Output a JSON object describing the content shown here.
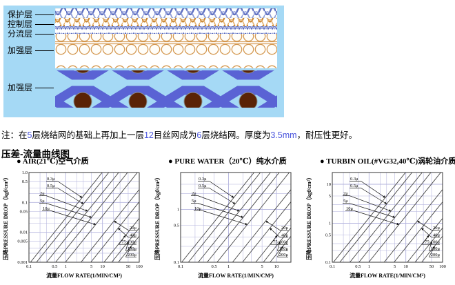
{
  "colors": {
    "diagram_background": "#a5d9f5",
    "braid_blue": "#5b6cc0",
    "braid_blue_light": "#8f9dd8",
    "braid_orange": "#c8852f",
    "braid_orange_light": "#e3b070",
    "circle_orange": "#d49850",
    "weave_ribbon_blue": "#5a63d4",
    "weft_wire_brown": "#5a2306",
    "note_highlight": "#4a55dd",
    "chart_grid": "#b4b4de",
    "chart_line": "#444444"
  },
  "diagram": {
    "labels": [
      {
        "text": "保护层"
      },
      {
        "text": "控制层"
      },
      {
        "text": "分流层"
      },
      {
        "text": "加强层"
      },
      {
        "text": "加强层"
      }
    ]
  },
  "note": {
    "part1": "注：在",
    "n1": "5",
    "part2": "层烧结网的基础上再加上一层",
    "n2": "12",
    "part3": "目丝网成为",
    "n3": "6",
    "part4": "层烧结网。厚度为",
    "n4": "3.5mm",
    "part5": "，耐压性更好。"
  },
  "section_title": "压差-流量曲线图",
  "chart_data": [
    {
      "type": "line",
      "title": "● AIR(21℃)空气介质",
      "xlabel": "流量FLOW RATE(1/MIN/CM²)",
      "ylabel": "压降PRESSURE DROP（kgf/cm²）",
      "xlim": [
        0.1,
        100
      ],
      "ylim": [
        0.001,
        1.0
      ],
      "xticks": {
        "values": [
          0.1,
          0.5,
          1,
          5,
          10,
          50,
          100
        ],
        "labels": [
          "0.1",
          "0.5",
          "1",
          "5",
          "10",
          "50",
          "100"
        ]
      },
      "yticks": {
        "values": [
          1.0,
          0.5,
          0.1,
          0.05,
          0.01,
          0.005,
          0.001
        ],
        "labels": [
          "1.0",
          "0.5",
          "0.1",
          "0.05",
          "0.01",
          "0.005",
          "0.001"
        ]
      },
      "series": [
        {
          "name": "0.3μ",
          "points": [
            [
              0.11,
              0.001
            ],
            [
              9.8,
              1.0
            ]
          ]
        },
        {
          "name": "0.5μ",
          "points": [
            [
              0.16,
              0.001
            ],
            [
              14.8,
              1.0
            ]
          ]
        },
        {
          "name": "2μ",
          "points": [
            [
              0.3,
              0.001
            ],
            [
              27.5,
              1.0
            ]
          ]
        },
        {
          "name": "5μ",
          "points": [
            [
              0.53,
              0.001
            ],
            [
              48,
              1.0
            ]
          ]
        },
        {
          "name": "10μ",
          "points": [
            [
              0.98,
              0.001
            ],
            [
              89,
              1.0
            ]
          ]
        },
        {
          "name": "20μ",
          "points": [
            [
              2.6,
              0.001
            ],
            [
              234,
              1.0
            ]
          ]
        },
        {
          "name": "40μ",
          "points": [
            [
              4.8,
              0.001
            ],
            [
              437,
              1.0
            ]
          ]
        },
        {
          "name": "75-100μ",
          "points": [
            [
              11,
              0.001
            ],
            [
              1000,
              1.0
            ]
          ]
        },
        {
          "name": "150μ",
          "points": [
            [
              17.8,
              0.001
            ],
            [
              1620,
              1.0
            ]
          ]
        },
        {
          "name": "200μ",
          "points": [
            [
              26.9,
              0.001
            ],
            [
              2450,
              1.0
            ]
          ]
        }
      ]
    },
    {
      "type": "line",
      "title": "● PURE WATER（20℃）纯水介质",
      "xlabel": "流量FLOW RATE(1/MIN/CM²)",
      "ylabel": "压降PRESSURE DROP（kgf/cm²）",
      "xlim": [
        0.1,
        20
      ],
      "ylim": [
        0.1,
        5
      ],
      "xticks": {
        "values": [
          0.1,
          0.5,
          1,
          5,
          10
        ],
        "labels": [
          "0.1",
          "0.5",
          "1",
          "5",
          "10"
        ]
      },
      "yticks": {
        "values": [
          1,
          0.5,
          0.1
        ],
        "labels": [
          "1",
          "0.5",
          "0.1"
        ]
      },
      "series": [
        {
          "name": "0.3μ",
          "points": [
            [
              0.105,
              0.1
            ],
            [
              3.4,
              5
            ]
          ]
        },
        {
          "name": "0.5μ",
          "points": [
            [
              0.145,
              0.1
            ],
            [
              4.6,
              5
            ]
          ]
        },
        {
          "name": "2μ",
          "points": [
            [
              0.233,
              0.1
            ],
            [
              7.5,
              5
            ]
          ]
        },
        {
          "name": "5μ",
          "points": [
            [
              0.357,
              0.1
            ],
            [
              11.4,
              5
            ]
          ]
        },
        {
          "name": "10μ",
          "points": [
            [
              0.575,
              0.1
            ],
            [
              18.4,
              5
            ]
          ]
        },
        {
          "name": "20μ",
          "points": [
            [
              1.21,
              0.1
            ],
            [
              38.7,
              5
            ]
          ]
        },
        {
          "name": "40μ",
          "points": [
            [
              1.95,
              0.1
            ],
            [
              62,
              5
            ]
          ]
        },
        {
          "name": "75-100μ",
          "points": [
            [
              3.68,
              0.1
            ],
            [
              118,
              5
            ]
          ]
        },
        {
          "name": "150μ",
          "points": [
            [
              5.31,
              0.1
            ],
            [
              170,
              5
            ]
          ]
        },
        {
          "name": "200μ",
          "points": [
            [
              7.33,
              0.1
            ],
            [
              235,
              5
            ]
          ]
        }
      ]
    },
    {
      "type": "line",
      "title": "● TURBIN OIL(#VG32,40℃)涡轮油介质",
      "xlabel": "流量FLOW RATE(1/MIN/CM²)",
      "ylabel": "压降PRESSURE DROP（kgf/cm²）",
      "xlim": [
        0.1,
        100
      ],
      "ylim": [
        0.1,
        20
      ],
      "xticks": {
        "values": [
          0.1,
          0.5,
          1,
          5,
          10,
          50,
          100
        ],
        "labels": [
          "0.1",
          "0.5",
          "1",
          "5",
          "10",
          "50",
          "100"
        ]
      },
      "yticks": {
        "values": [
          10,
          5,
          1,
          0.5,
          0.1
        ],
        "labels": [
          "10",
          "5",
          "1",
          "0.5",
          "0.1"
        ]
      },
      "series": [
        {
          "name": "0.3μ",
          "points": [
            [
              0.107,
              0.1
            ],
            [
              9.8,
              20
            ]
          ]
        },
        {
          "name": "0.5μ",
          "points": [
            [
              0.16,
              0.1
            ],
            [
              14.7,
              20
            ]
          ]
        },
        {
          "name": "2μ",
          "points": [
            [
              0.3,
              0.1
            ],
            [
              27.7,
              20
            ]
          ]
        },
        {
          "name": "5μ",
          "points": [
            [
              0.53,
              0.1
            ],
            [
              48,
              20
            ]
          ]
        },
        {
          "name": "10μ",
          "points": [
            [
              0.98,
              0.1
            ],
            [
              89,
              20
            ]
          ]
        },
        {
          "name": "20μ",
          "points": [
            [
              2.57,
              0.1
            ],
            [
              235,
              20
            ]
          ]
        },
        {
          "name": "40μ",
          "points": [
            [
              4.79,
              0.1
            ],
            [
              439,
              20
            ]
          ]
        },
        {
          "name": "75-100μ",
          "points": [
            [
              11,
              0.1
            ],
            [
              1004,
              20
            ]
          ]
        },
        {
          "name": "150μ",
          "points": [
            [
              17.8,
              0.1
            ],
            [
              1630,
              20
            ]
          ]
        },
        {
          "name": "200μ",
          "points": [
            [
              26.9,
              0.1
            ],
            [
              2464,
              20
            ]
          ]
        }
      ]
    }
  ]
}
